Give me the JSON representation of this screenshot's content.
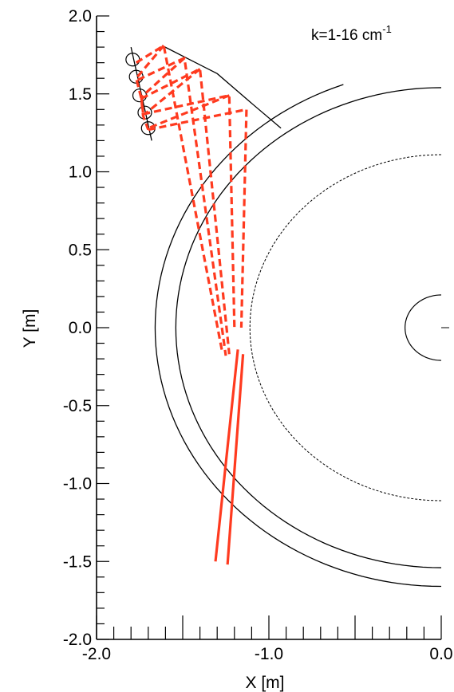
{
  "chart_data": {
    "type": "line",
    "title": "",
    "xlabel": "X [m]",
    "ylabel": "Y [m]",
    "xlim": [
      -2.0,
      0.0
    ],
    "ylim": [
      -2.0,
      2.0
    ],
    "grid": false,
    "xticks": [
      "-2.0",
      "-1.0",
      "0.0"
    ],
    "yticks": [
      "2.0",
      "1.5",
      "1.0",
      "0.5",
      "0.0",
      "-0.5",
      "-1.0",
      "-1.5",
      "-2.0"
    ],
    "annotation": {
      "text_base": "k=1-16 cm",
      "text_sup": "-1",
      "position": "top-right"
    },
    "geometry": {
      "outer_wall_arc": {
        "radius": 1.66,
        "theta_start": 110,
        "theta_end": 270
      },
      "inner_wall_arc": {
        "radius": 1.54,
        "theta_start": 90,
        "theta_end": 270
      },
      "separatrix_dashed": {
        "radius": 1.11,
        "theta_start": 90,
        "theta_end": 270
      },
      "core_circle": {
        "radius": 0.21
      },
      "top_guard_curve": [
        [
          -1.62,
          1.81
        ],
        [
          -1.3,
          1.63
        ],
        [
          -1.09,
          1.43
        ],
        [
          -0.93,
          1.28
        ]
      ],
      "antenna_line": [
        [
          -1.8,
          1.8
        ],
        [
          -1.68,
          1.2
        ]
      ],
      "antenna_loops": [
        [
          -1.79,
          1.72
        ],
        [
          -1.77,
          1.61
        ],
        [
          -1.75,
          1.49
        ],
        [
          -1.72,
          1.38
        ],
        [
          -1.7,
          1.28
        ]
      ]
    },
    "series": [
      {
        "style": "dashed",
        "color": "#ff3a1f",
        "paths": [
          [
            [
              -1.77,
              1.7
            ],
            [
              -1.61,
              1.81
            ],
            [
              -1.27,
              -0.16
            ]
          ],
          [
            [
              -1.76,
              1.59
            ],
            [
              -1.49,
              1.73
            ],
            [
              -1.25,
              -0.18
            ]
          ],
          [
            [
              -1.74,
              1.47
            ],
            [
              -1.4,
              1.66
            ],
            [
              -1.23,
              -0.17
            ]
          ],
          [
            [
              -1.73,
              1.37
            ],
            [
              -1.23,
              1.49
            ],
            [
              -1.2,
              0.0
            ]
          ],
          [
            [
              -1.7,
              1.27
            ],
            [
              -1.13,
              1.4
            ],
            [
              -1.16,
              0.0
            ]
          ],
          [
            [
              -1.61,
              1.81
            ],
            [
              -1.77,
              1.6
            ],
            [
              -1.74,
              1.47
            ],
            [
              -1.73,
              1.36
            ],
            [
              -1.7,
              1.27
            ]
          ],
          [
            [
              -1.49,
              1.73
            ],
            [
              -1.74,
              1.48
            ],
            [
              -1.73,
              1.38
            ]
          ],
          [
            [
              -1.4,
              1.66
            ],
            [
              -1.72,
              1.37
            ]
          ],
          [
            [
              -1.23,
              1.49
            ],
            [
              -1.7,
              1.28
            ]
          ]
        ]
      },
      {
        "style": "solid",
        "color": "#ff3a1f",
        "paths": [
          [
            [
              -1.18,
              -0.14
            ],
            [
              -1.31,
              -1.5
            ]
          ],
          [
            [
              -1.15,
              -0.17
            ],
            [
              -1.24,
              -1.52
            ]
          ]
        ]
      }
    ]
  }
}
